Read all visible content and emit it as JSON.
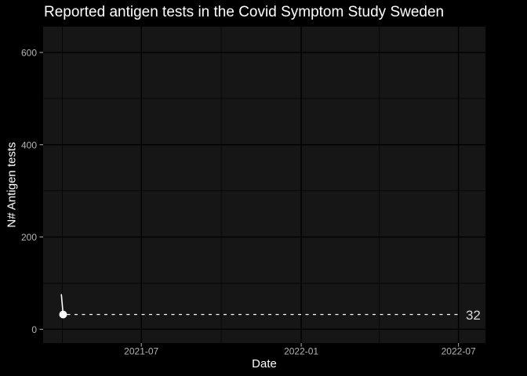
{
  "colors": {
    "background": "#000000",
    "panel_background": "#161616",
    "grid_major": "#000000",
    "grid_minor": "#000000",
    "title_text": "#ffffff",
    "axis_title_text": "#ffffff",
    "tick_text": "#b3b3b3",
    "series": "#ffffff",
    "annotation_text": "#d9d9d9"
  },
  "chart_data": {
    "type": "line",
    "title": "Reported antigen tests in the Covid Symptom Study Sweden",
    "xlabel": "Date",
    "ylabel": "N# Antigen tests",
    "grid": true,
    "legend": false,
    "x_axis": {
      "type": "date",
      "range": [
        "2021-03-10",
        "2022-08-01"
      ],
      "major_ticks": [
        {
          "date": "2021-07-01",
          "label": "2021-07"
        },
        {
          "date": "2022-01-01",
          "label": "2022-01"
        },
        {
          "date": "2022-07-01",
          "label": "2022-07"
        }
      ],
      "minor_gridlines": [
        "2021-04-01",
        "2021-10-01",
        "2022-04-01"
      ]
    },
    "y_axis": {
      "range": [
        -30,
        656
      ],
      "major_ticks": [
        {
          "value": 0,
          "label": "0"
        },
        {
          "value": 200,
          "label": "200"
        },
        {
          "value": 400,
          "label": "400"
        },
        {
          "value": 600,
          "label": "600"
        }
      ],
      "minor_gridlines": [
        100,
        300,
        500
      ]
    },
    "series": [
      {
        "name": "Reported antigen tests",
        "points": [
          {
            "date": "2021-03-31",
            "value": 75
          },
          {
            "date": "2021-04-02",
            "value": 32
          }
        ]
      }
    ],
    "last_point": {
      "date": "2021-04-02",
      "value": 32
    },
    "reference_line": {
      "value": 32,
      "start": "2021-04-02",
      "end": "2022-07-04",
      "style": "dashed",
      "label": "32"
    }
  }
}
